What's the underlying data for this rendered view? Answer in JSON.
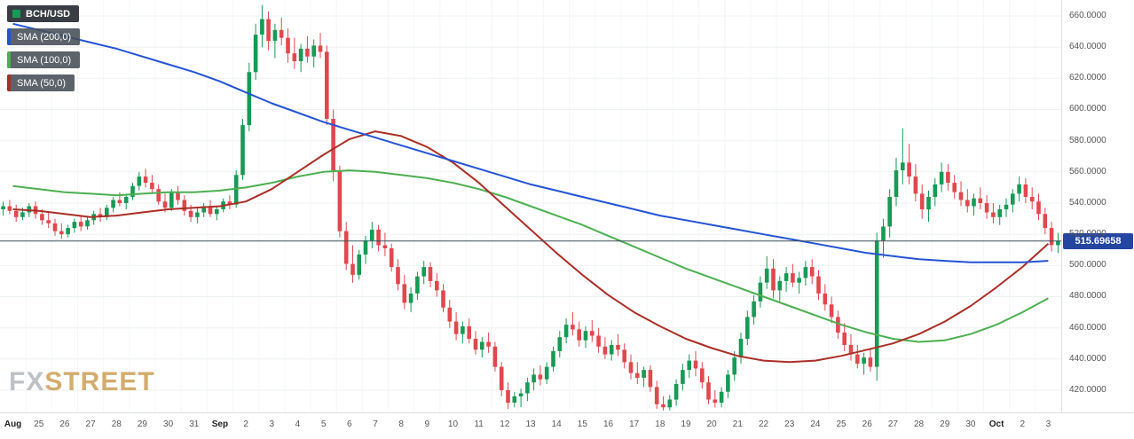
{
  "symbol": {
    "label": "BCH/USD"
  },
  "y_axis": {
    "ticks": [
      "660.0000",
      "640.0000",
      "620.0000",
      "600.0000",
      "580.0000",
      "560.0000",
      "540.0000",
      "520.0000",
      "500.0000",
      "480.0000",
      "460.0000",
      "440.0000",
      "420.0000"
    ],
    "price_tag": "515.69658"
  },
  "watermark": {
    "fx": "FX",
    "street": "STREET"
  },
  "chart_data": {
    "type": "candlestick",
    "symbol": "BCH/USD",
    "last_price": 515.69658,
    "ylim": [
      400,
      670
    ],
    "grid": true,
    "candles_per_day": 4,
    "colors": {
      "up": "#169a55",
      "down": "#e0484e",
      "last_price_line": "#3c4d58",
      "price_tag_bg": "#2445a0"
    },
    "x_labels": [
      "Aug",
      "25",
      "26",
      "27",
      "28",
      "29",
      "30",
      "31",
      "Sep",
      "2",
      "3",
      "4",
      "5",
      "6",
      "7",
      "8",
      "9",
      "10",
      "11",
      "12",
      "13",
      "14",
      "15",
      "16",
      "17",
      "18",
      "19",
      "20",
      "21",
      "22",
      "23",
      "24",
      "25",
      "26",
      "27",
      "28",
      "29",
      "30",
      "Oct",
      "2",
      "3"
    ],
    "candles": [
      [
        536,
        541,
        532,
        538
      ],
      [
        538,
        542,
        533,
        535
      ],
      [
        535,
        539,
        528,
        531
      ],
      [
        531,
        537,
        529,
        534
      ],
      [
        534,
        540,
        531,
        538
      ],
      [
        538,
        541,
        530,
        533
      ],
      [
        533,
        536,
        526,
        529
      ],
      [
        529,
        534,
        524,
        527
      ],
      [
        527,
        530,
        519,
        522
      ],
      [
        522,
        527,
        517,
        520
      ],
      [
        520,
        526,
        518,
        524
      ],
      [
        524,
        530,
        521,
        528
      ],
      [
        528,
        532,
        522,
        525
      ],
      [
        525,
        531,
        523,
        529
      ],
      [
        529,
        535,
        526,
        533
      ],
      [
        533,
        537,
        528,
        531
      ],
      [
        531,
        539,
        529,
        537
      ],
      [
        537,
        544,
        534,
        542
      ],
      [
        542,
        547,
        538,
        540
      ],
      [
        540,
        546,
        536,
        544
      ],
      [
        544,
        553,
        542,
        551
      ],
      [
        551,
        560,
        548,
        557
      ],
      [
        557,
        562,
        550,
        553
      ],
      [
        553,
        558,
        546,
        549
      ],
      [
        549,
        552,
        539,
        541
      ],
      [
        541,
        546,
        534,
        537
      ],
      [
        537,
        549,
        535,
        547
      ],
      [
        547,
        551,
        539,
        542
      ],
      [
        542,
        545,
        532,
        535
      ],
      [
        535,
        539,
        528,
        531
      ],
      [
        531,
        537,
        527,
        534
      ],
      [
        534,
        540,
        531,
        538
      ],
      [
        538,
        542,
        531,
        533
      ],
      [
        533,
        538,
        529,
        536
      ],
      [
        536,
        543,
        534,
        541
      ],
      [
        541,
        545,
        536,
        539
      ],
      [
        539,
        561,
        537,
        558
      ],
      [
        558,
        594,
        555,
        590
      ],
      [
        590,
        630,
        586,
        624
      ],
      [
        624,
        655,
        619,
        648
      ],
      [
        648,
        667,
        640,
        658
      ],
      [
        658,
        663,
        638,
        644
      ],
      [
        644,
        655,
        633,
        651
      ],
      [
        651,
        659,
        641,
        646
      ],
      [
        646,
        652,
        630,
        636
      ],
      [
        636,
        646,
        626,
        631
      ],
      [
        631,
        642,
        624,
        639
      ],
      [
        639,
        647,
        630,
        634
      ],
      [
        634,
        645,
        627,
        641
      ],
      [
        641,
        649,
        633,
        637
      ],
      [
        637,
        641,
        590,
        594
      ],
      [
        594,
        600,
        554,
        561
      ],
      [
        561,
        564,
        518,
        522
      ],
      [
        522,
        528,
        497,
        501
      ],
      [
        501,
        513,
        489,
        494
      ],
      [
        494,
        510,
        491,
        507
      ],
      [
        507,
        519,
        501,
        516
      ],
      [
        516,
        528,
        511,
        523
      ],
      [
        523,
        526,
        509,
        513
      ],
      [
        513,
        521,
        506,
        511
      ],
      [
        511,
        514,
        496,
        499
      ],
      [
        499,
        504,
        484,
        488
      ],
      [
        488,
        494,
        472,
        476
      ],
      [
        476,
        486,
        470,
        482
      ],
      [
        482,
        496,
        478,
        493
      ],
      [
        493,
        503,
        488,
        499
      ],
      [
        499,
        502,
        486,
        490
      ],
      [
        490,
        495,
        480,
        484
      ],
      [
        484,
        488,
        470,
        473
      ],
      [
        473,
        478,
        460,
        464
      ],
      [
        464,
        470,
        452,
        456
      ],
      [
        456,
        464,
        450,
        461
      ],
      [
        461,
        466,
        450,
        453
      ],
      [
        453,
        458,
        443,
        446
      ],
      [
        446,
        454,
        441,
        451
      ],
      [
        451,
        457,
        444,
        448
      ],
      [
        448,
        451,
        432,
        435
      ],
      [
        435,
        438,
        416,
        420
      ],
      [
        420,
        425,
        408,
        412
      ],
      [
        412,
        419,
        409,
        416
      ],
      [
        416,
        421,
        409,
        418
      ],
      [
        418,
        428,
        413,
        425
      ],
      [
        425,
        434,
        420,
        430
      ],
      [
        430,
        436,
        423,
        427
      ],
      [
        427,
        438,
        424,
        435
      ],
      [
        435,
        448,
        432,
        445
      ],
      [
        445,
        458,
        441,
        454
      ],
      [
        454,
        466,
        450,
        462
      ],
      [
        462,
        470,
        455,
        459
      ],
      [
        459,
        464,
        448,
        452
      ],
      [
        452,
        461,
        447,
        458
      ],
      [
        458,
        465,
        451,
        455
      ],
      [
        455,
        460,
        444,
        448
      ],
      [
        448,
        454,
        440,
        443
      ],
      [
        443,
        452,
        439,
        449
      ],
      [
        449,
        456,
        442,
        446
      ],
      [
        446,
        450,
        434,
        438
      ],
      [
        438,
        443,
        427,
        431
      ],
      [
        431,
        438,
        424,
        428
      ],
      [
        428,
        435,
        422,
        433
      ],
      [
        433,
        436,
        419,
        422
      ],
      [
        422,
        426,
        408,
        411
      ],
      [
        411,
        416,
        407,
        409
      ],
      [
        409,
        417,
        407,
        414
      ],
      [
        414,
        427,
        410,
        424
      ],
      [
        424,
        437,
        420,
        433
      ],
      [
        433,
        443,
        428,
        439
      ],
      [
        439,
        445,
        429,
        434
      ],
      [
        434,
        438,
        421,
        425
      ],
      [
        425,
        429,
        411,
        414
      ],
      [
        414,
        420,
        409,
        412
      ],
      [
        412,
        422,
        409,
        419
      ],
      [
        419,
        433,
        415,
        430
      ],
      [
        430,
        445,
        426,
        441
      ],
      [
        441,
        457,
        437,
        453
      ],
      [
        453,
        471,
        449,
        467
      ],
      [
        467,
        481,
        462,
        477
      ],
      [
        477,
        493,
        473,
        489
      ],
      [
        489,
        506,
        485,
        498
      ],
      [
        498,
        504,
        479,
        484
      ],
      [
        484,
        493,
        477,
        490
      ],
      [
        490,
        499,
        483,
        495
      ],
      [
        495,
        501,
        486,
        489
      ],
      [
        489,
        496,
        482,
        492
      ],
      [
        492,
        503,
        487,
        499
      ],
      [
        499,
        504,
        488,
        493
      ],
      [
        493,
        497,
        478,
        482
      ],
      [
        482,
        488,
        471,
        475
      ],
      [
        475,
        480,
        463,
        467
      ],
      [
        467,
        471,
        453,
        457
      ],
      [
        457,
        463,
        445,
        449
      ],
      [
        449,
        456,
        439,
        443
      ],
      [
        443,
        449,
        434,
        437
      ],
      [
        437,
        444,
        430,
        441
      ],
      [
        441,
        447,
        432,
        435
      ],
      [
        435,
        521,
        426,
        516
      ],
      [
        516,
        530,
        505,
        525
      ],
      [
        525,
        549,
        518,
        544
      ],
      [
        544,
        569,
        538,
        561
      ],
      [
        561,
        588,
        552,
        566
      ],
      [
        566,
        578,
        552,
        557
      ],
      [
        557,
        565,
        541,
        546
      ],
      [
        546,
        552,
        530,
        536
      ],
      [
        536,
        548,
        528,
        544
      ],
      [
        544,
        556,
        538,
        552
      ],
      [
        552,
        566,
        547,
        560
      ],
      [
        560,
        565,
        548,
        553
      ],
      [
        553,
        558,
        543,
        547
      ],
      [
        547,
        554,
        538,
        542
      ],
      [
        542,
        549,
        534,
        538
      ],
      [
        538,
        546,
        532,
        543
      ],
      [
        543,
        550,
        536,
        540
      ],
      [
        540,
        545,
        530,
        534
      ],
      [
        534,
        540,
        527,
        531
      ],
      [
        531,
        539,
        526,
        536
      ],
      [
        536,
        543,
        531,
        539
      ],
      [
        539,
        549,
        534,
        546
      ],
      [
        546,
        557,
        541,
        552
      ],
      [
        552,
        556,
        540,
        544
      ],
      [
        544,
        550,
        536,
        541
      ],
      [
        541,
        546,
        529,
        533
      ],
      [
        533,
        537,
        520,
        524
      ],
      [
        524,
        528,
        509,
        513
      ],
      [
        513,
        521,
        508,
        515.7
      ]
    ],
    "series": [
      {
        "name": "SMA (200,0)",
        "color": "#2353d4",
        "values": [
          655,
          651,
          647,
          643,
          639,
          634,
          629,
          624,
          618,
          611,
          604,
          598,
          592,
          587,
          582,
          577,
          572,
          567,
          562,
          557,
          552,
          548,
          544,
          540,
          536,
          532,
          529,
          526,
          523,
          520,
          517,
          514,
          511,
          508,
          506,
          504,
          503,
          502,
          502,
          502,
          503
        ]
      },
      {
        "name": "SMA (100,0)",
        "color": "#4caf50",
        "values": [
          551,
          549,
          547,
          546,
          545,
          546,
          547,
          547,
          548,
          550,
          553,
          557,
          560,
          561,
          560,
          558,
          556,
          553,
          549,
          544,
          538,
          532,
          526,
          519,
          512,
          505,
          498,
          492,
          486,
          480,
          474,
          468,
          462,
          457,
          453,
          451,
          452,
          456,
          462,
          470,
          479
        ]
      },
      {
        "name": "SMA (50,0)",
        "color": "#aa2e25",
        "values": [
          536,
          535,
          533,
          531,
          532,
          534,
          536,
          537,
          538,
          541,
          549,
          560,
          571,
          581,
          586,
          583,
          576,
          566,
          553,
          538,
          523,
          508,
          494,
          481,
          470,
          461,
          453,
          447,
          442,
          439,
          438,
          439,
          442,
          446,
          450,
          456,
          464,
          474,
          486,
          499,
          514
        ]
      }
    ]
  }
}
